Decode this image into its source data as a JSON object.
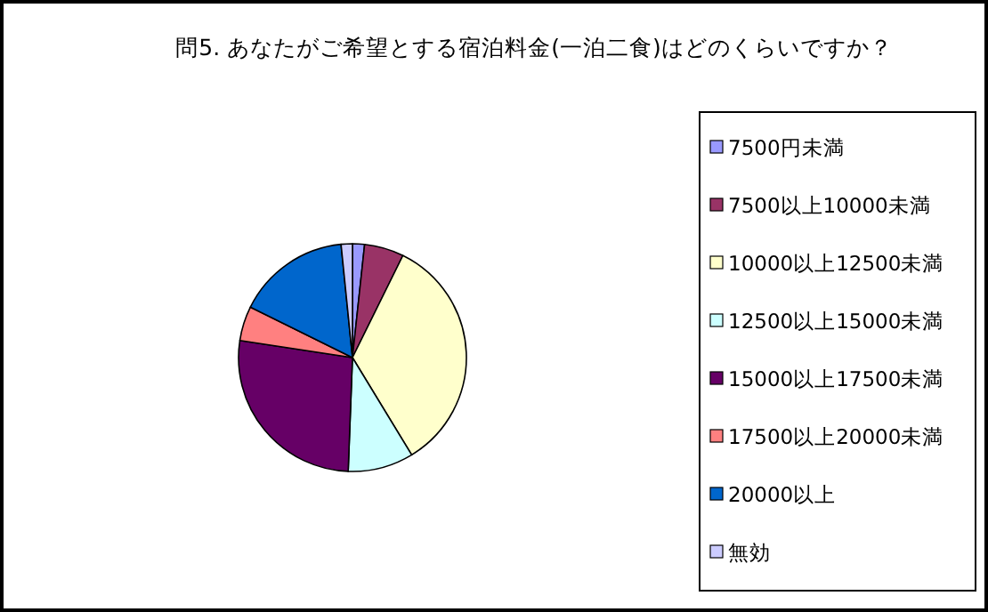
{
  "chart_data": {
    "type": "pie",
    "title": "問5. あなたがご希望とする宿泊料金(一泊二食)はどのくらいですか？",
    "categories": [
      "7500円未満",
      "7500以上10000未満",
      "10000以上12500未満",
      "12500以上15000未満",
      "15000以上17500未満",
      "17500以上20000未満",
      "20000以上",
      "無効"
    ],
    "values": [
      1.7,
      5.6,
      34,
      9.3,
      26.8,
      4.9,
      16.1,
      1.6
    ],
    "colors": [
      "#9999ff",
      "#993366",
      "#ffffcc",
      "#ccffff",
      "#660066",
      "#ff8080",
      "#0066cc",
      "#ccccff"
    ],
    "legend": "right"
  }
}
